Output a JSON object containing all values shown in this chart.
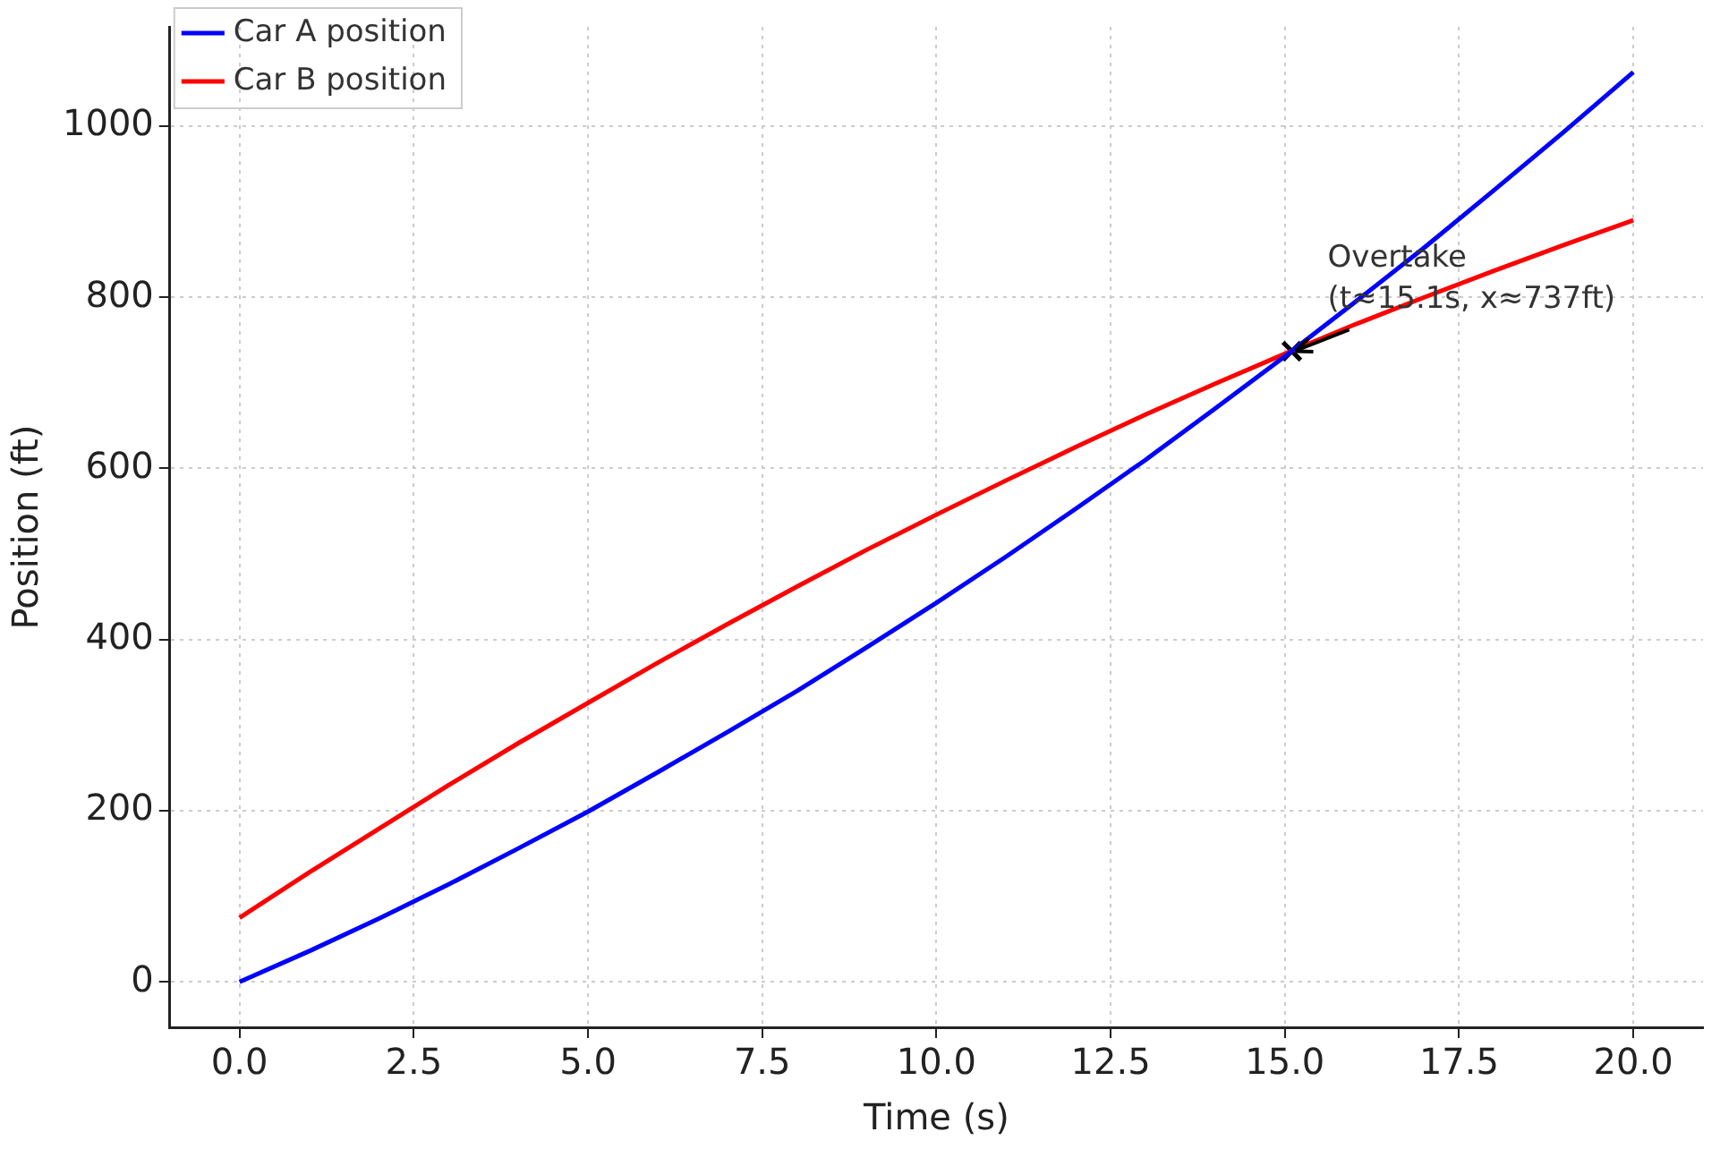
{
  "chart_data": {
    "type": "line",
    "xlabel": "Time (s)",
    "ylabel": "Position (ft)",
    "x": [
      0,
      1,
      2,
      3,
      4,
      5,
      6,
      7,
      8,
      9,
      10,
      11,
      12,
      13,
      14,
      15,
      16,
      17,
      18,
      19,
      20
    ],
    "series": [
      {
        "name": "Car A position",
        "color": "#0000ff",
        "values": [
          0,
          36,
          74,
          114,
          156,
          199,
          245,
          292,
          340,
          391,
          443,
          497,
          553,
          610,
          670,
          731,
          794,
          858,
          925,
          993,
          1063
        ]
      },
      {
        "name": "Car B position",
        "color": "#ff0000",
        "values": [
          75,
          128,
          179,
          230,
          279,
          326,
          373,
          418,
          462,
          505,
          546,
          586,
          625,
          663,
          699,
          734,
          768,
          800,
          831,
          861,
          890
        ]
      },
      {
        "type": "scatter",
        "color": "#000000",
        "marker": "cross",
        "x": [
          15.1
        ],
        "values": [
          737
        ]
      }
    ],
    "xlim": [
      -1,
      21
    ],
    "xticks": [
      {
        "value": 0,
        "label": "0.0"
      },
      {
        "value": 2.5,
        "label": "2.5"
      },
      {
        "value": 5,
        "label": "5.0"
      },
      {
        "value": 7.5,
        "label": "7.5"
      },
      {
        "value": 10,
        "label": "10.0"
      },
      {
        "value": 12.5,
        "label": "12.5"
      },
      {
        "value": 15,
        "label": "15.0"
      },
      {
        "value": 17.5,
        "label": "17.5"
      },
      {
        "value": 20,
        "label": "20.0"
      }
    ],
    "ylim": [
      -53,
      1116
    ],
    "yticks": [
      0,
      200,
      400,
      600,
      800,
      1000
    ],
    "annotations": [
      {
        "text": "Overtake\n(t≈15.1s, x≈737ft)",
        "x": 15.1,
        "y": 737
      }
    ],
    "grid": true,
    "legend": "top left",
    "marker": "none",
    "line_style": "solid"
  }
}
